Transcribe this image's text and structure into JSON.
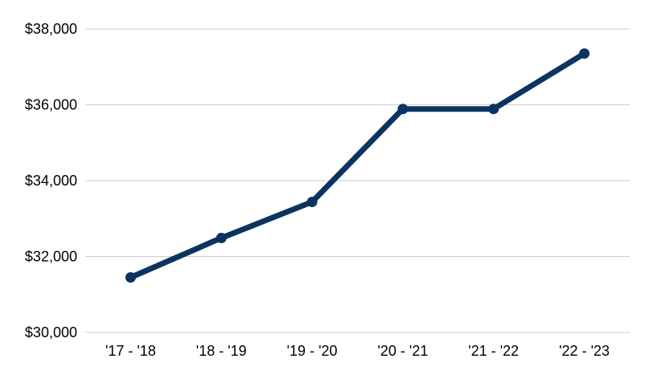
{
  "chart_data": {
    "type": "line",
    "title": "",
    "xlabel": "",
    "ylabel": "",
    "categories": [
      "'17 - '18",
      "'18 - '19",
      "'19 - '20",
      "'20 - '21",
      "'21 - '22",
      "'22 - '23"
    ],
    "series": [
      {
        "values": [
          31450,
          32490,
          33440,
          35890,
          35890,
          37350
        ],
        "color": "#0b3560"
      }
    ],
    "ylim": [
      30000,
      38000
    ],
    "yticks": [
      30000,
      32000,
      34000,
      36000,
      38000
    ],
    "ytick_labels": [
      "$30,000",
      "$32,000",
      "$34,000",
      "$36,000",
      "$38,000"
    ],
    "grid": true,
    "legend": "none"
  }
}
